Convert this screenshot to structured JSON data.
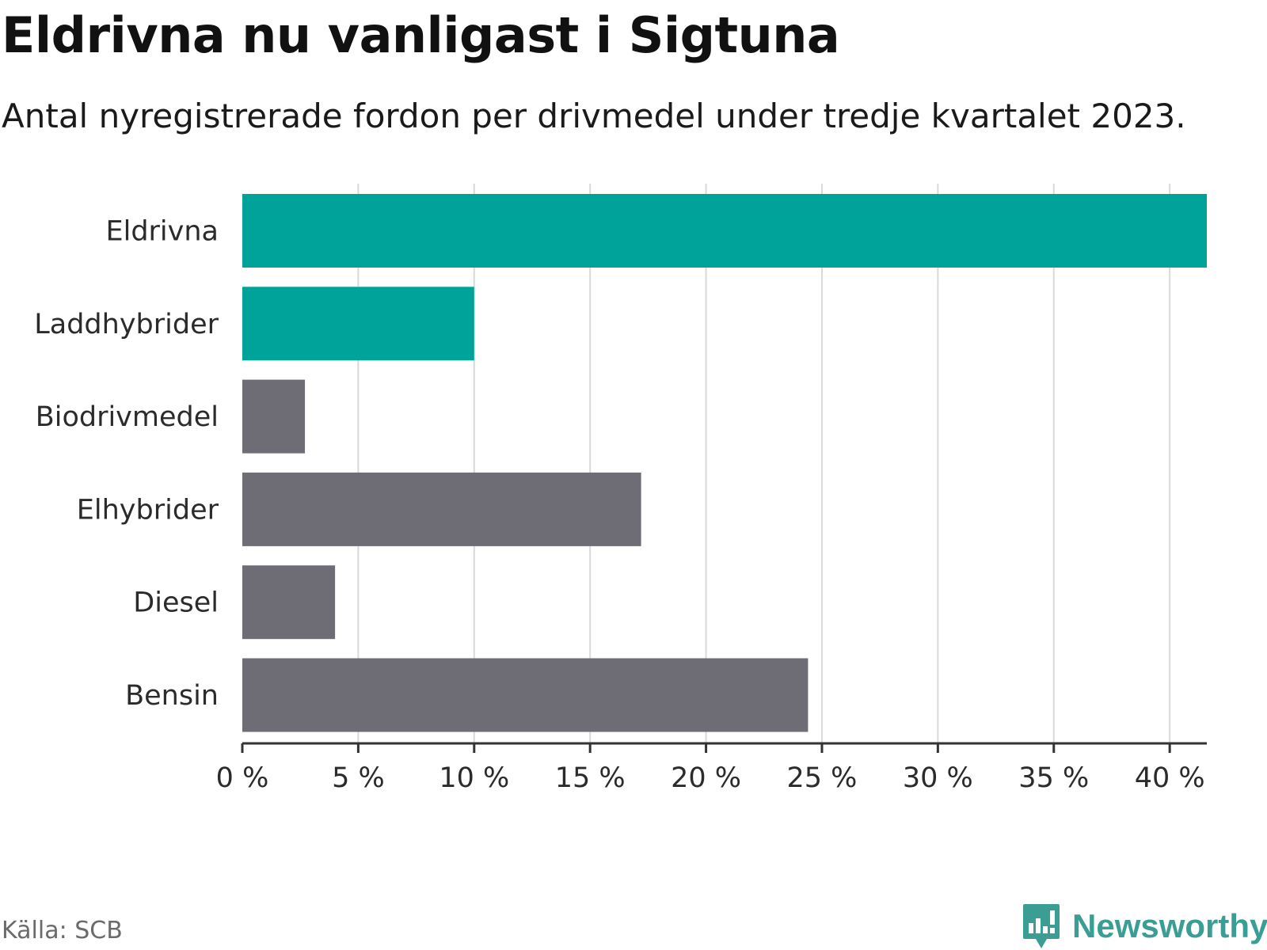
{
  "header": {
    "title": "Eldrivna nu vanligast i Sigtuna",
    "subtitle": "Antal nyregistrerade fordon per drivmedel under tredje kvartalet 2023."
  },
  "footer": {
    "source": "Källa: SCB",
    "brand": "Newsworthy"
  },
  "colors": {
    "highlight": "#00a39a",
    "default": "#6e6d75",
    "grid": "#d9d9d9",
    "axis": "#333333",
    "brand": "#3a9e94"
  },
  "chart_data": {
    "type": "bar",
    "orientation": "horizontal",
    "title": "Eldrivna nu vanligast i Sigtuna",
    "subtitle": "Antal nyregistrerade fordon per drivmedel under tredje kvartalet 2023.",
    "categories": [
      "Eldrivna",
      "Laddhybrider",
      "Biodrivmedel",
      "Elhybrider",
      "Diesel",
      "Bensin"
    ],
    "values": [
      41.6,
      10.0,
      2.7,
      17.2,
      4.0,
      24.4
    ],
    "highlighted": [
      true,
      true,
      false,
      false,
      false,
      false
    ],
    "unit": "%",
    "xlim": [
      0,
      41.6
    ],
    "xticks": [
      0,
      5,
      10,
      15,
      20,
      25,
      30,
      35,
      40
    ],
    "xtick_labels": [
      "0 %",
      "5 %",
      "10 %",
      "15 %",
      "20 %",
      "25 %",
      "30 %",
      "35 %",
      "40 %"
    ],
    "xlabel": "",
    "ylabel": "",
    "grid": true,
    "source": "Källa: SCB"
  }
}
